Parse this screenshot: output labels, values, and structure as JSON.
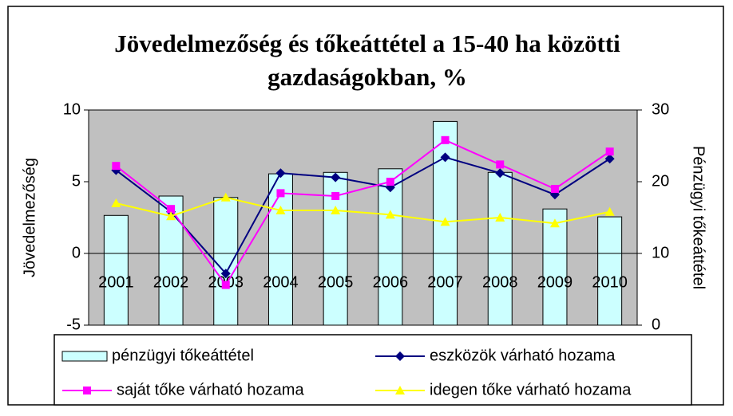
{
  "chart_data": {
    "type": "combo",
    "title": [
      "Jövedelmezőség és tőkeáttétel a 15-40 ha közötti",
      "gazdaságokban, %"
    ],
    "ylabel": "Jövedelmezőség",
    "y2label": "Pénzügyi tőkeáttétel",
    "categories": [
      "2001",
      "2002",
      "2003",
      "2004",
      "2005",
      "2006",
      "2007",
      "2008",
      "2009",
      "2010"
    ],
    "ylim": [
      -5,
      10
    ],
    "yticks": [
      -5,
      0,
      5,
      10
    ],
    "y2lim": [
      0,
      30
    ],
    "y2ticks": [
      0,
      10,
      20,
      30
    ],
    "series": [
      {
        "name": "pénzügyi tőkeáttétel",
        "type": "bar",
        "axis": "y2",
        "color": "#ccffff",
        "values": [
          15.3,
          18.0,
          17.8,
          21.1,
          21.3,
          21.8,
          28.4,
          21.3,
          16.2,
          15.1
        ]
      },
      {
        "name": "eszközök várható hozama",
        "type": "line",
        "marker": "diamond",
        "color": "#000080",
        "values": [
          5.8,
          2.9,
          -1.4,
          5.6,
          5.3,
          4.6,
          6.7,
          5.6,
          4.1,
          6.6
        ]
      },
      {
        "name": "saját tőke várható hozama",
        "type": "line",
        "marker": "square",
        "color": "#ff00ff",
        "values": [
          6.1,
          3.1,
          -2.2,
          4.2,
          4.0,
          5.0,
          7.9,
          6.2,
          4.5,
          7.1
        ]
      },
      {
        "name": "idegen tőke várható hozama",
        "type": "line",
        "marker": "triangle",
        "color": "#ffff00",
        "values": [
          3.5,
          2.6,
          3.9,
          3.0,
          3.0,
          2.7,
          2.2,
          2.5,
          2.1,
          2.9
        ]
      }
    ],
    "plot_background": "#c0c0c0"
  }
}
